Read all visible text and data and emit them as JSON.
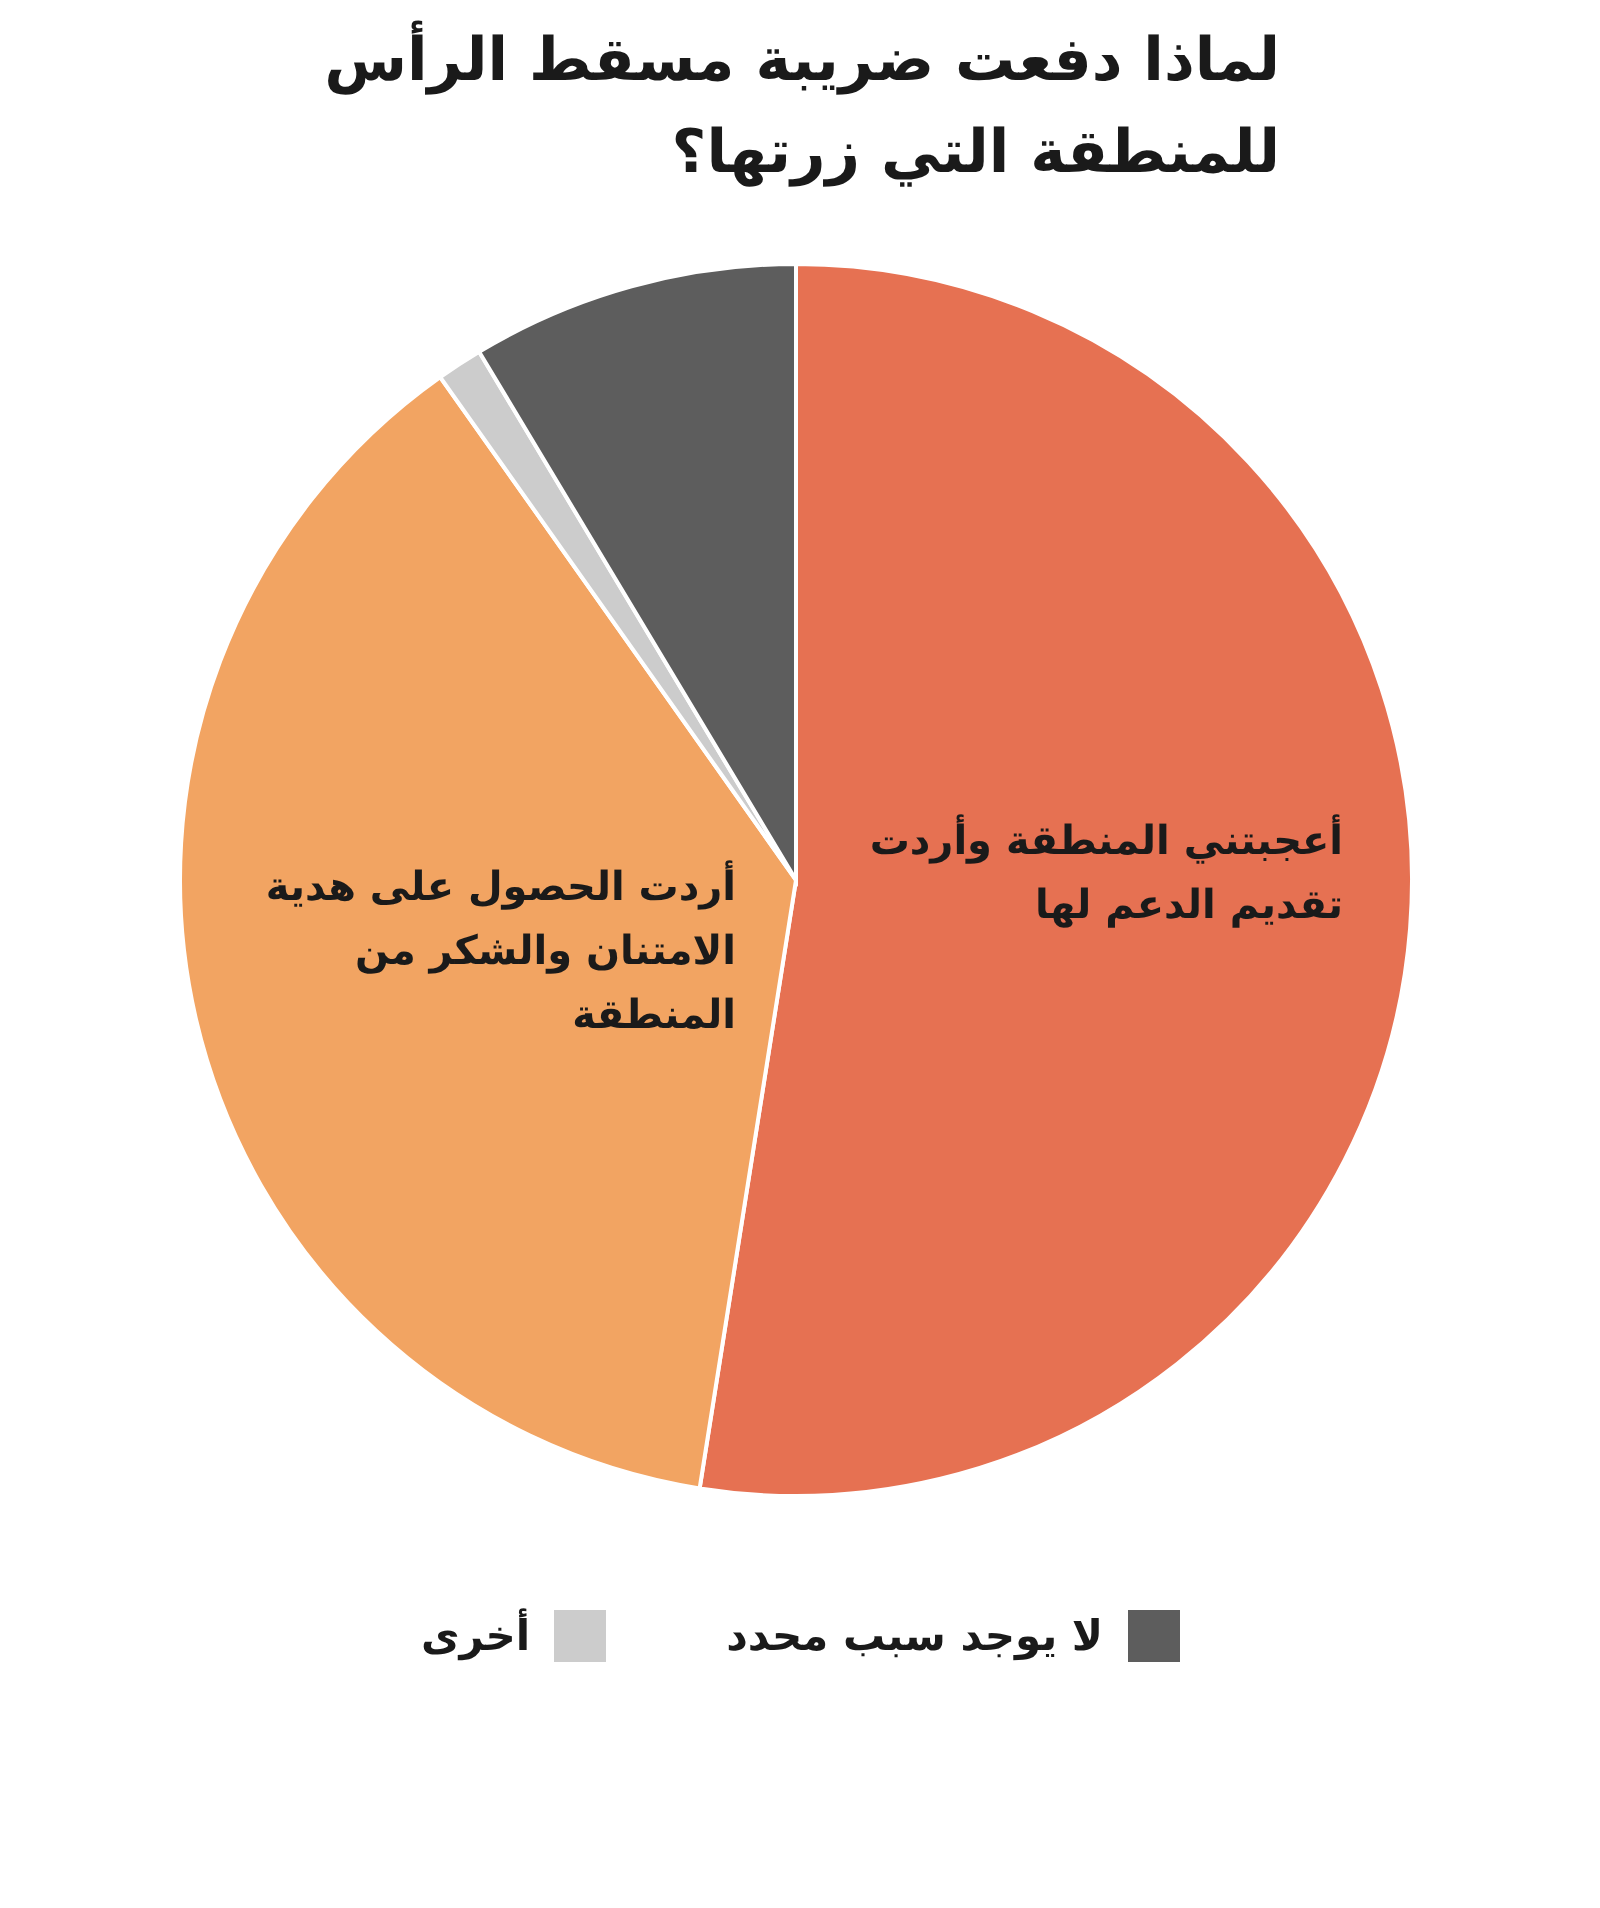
{
  "chart_data": {
    "type": "pie",
    "title": "لماذا دفعت ضريبة مسقط الرأس للمنطقة التي زرتها؟",
    "categories": [
      "أعجبتني المنطقة وأردت تقديم الدعم لها",
      "أردت الحصول على هدية الامتنان والشكر من المنطقة",
      "أخرى",
      "لا يوجد سبب محدد"
    ],
    "values": [
      52.5,
      37.7,
      1.2,
      8.6
    ],
    "colors": [
      "#e67152",
      "#f2a462",
      "#cccccc",
      "#5d5d5d"
    ],
    "legend": "bottom"
  }
}
